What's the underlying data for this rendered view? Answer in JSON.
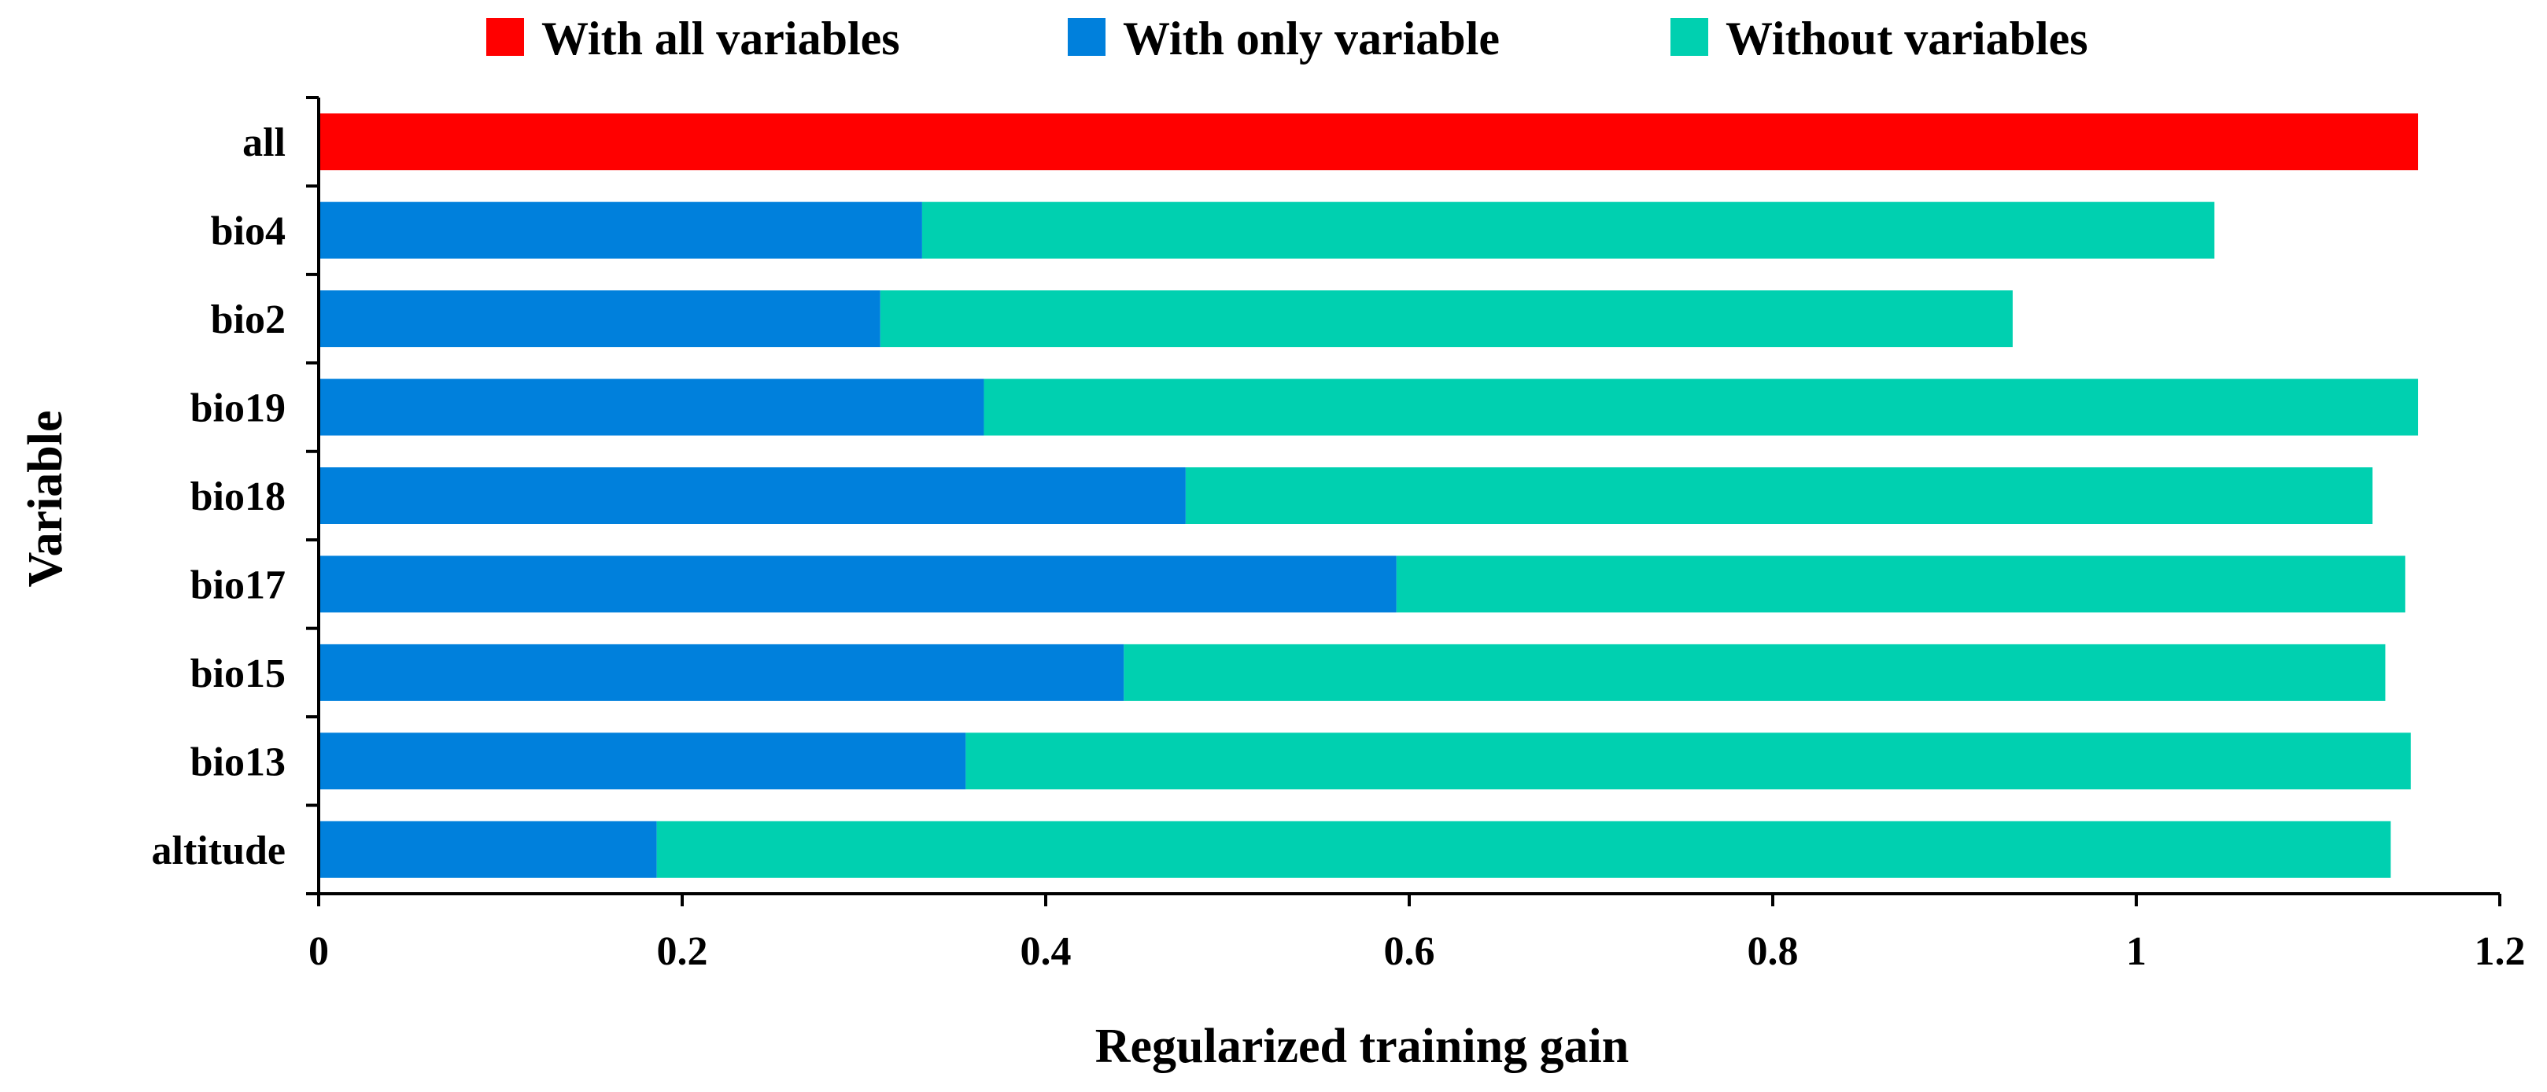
{
  "chart_data": {
    "type": "bar",
    "orientation": "horizontal",
    "stacked": true,
    "title": "",
    "xlabel": "Regularized training gain",
    "ylabel": "Variable",
    "xlim": [
      0,
      1.2
    ],
    "xticks": [
      0,
      0.2,
      0.4,
      0.6,
      0.8,
      1,
      1.2
    ],
    "xtick_labels": [
      "0",
      "0.2",
      "0.4",
      "0.6",
      "0.8",
      "1",
      "1.2"
    ],
    "grid": false,
    "legend_position": "top",
    "categories": [
      "all",
      "bio4",
      "bio2",
      "bio19",
      "bio18",
      "bio17",
      "bio15",
      "bio13",
      "altitude"
    ],
    "series": [
      {
        "name": "With all variables",
        "color": "#ff0000",
        "values": [
          1.155,
          0,
          0,
          0,
          0,
          0,
          0,
          0,
          0
        ]
      },
      {
        "name": "With only variable",
        "color": "#0080dc",
        "values": [
          0,
          0.332,
          0.309,
          0.366,
          0.477,
          0.593,
          0.443,
          0.356,
          0.186
        ]
      },
      {
        "name": "Without variables",
        "color": "#00d0b0",
        "values": [
          0,
          0.711,
          0.623,
          0.789,
          0.653,
          0.555,
          0.694,
          0.795,
          0.954
        ]
      }
    ]
  }
}
